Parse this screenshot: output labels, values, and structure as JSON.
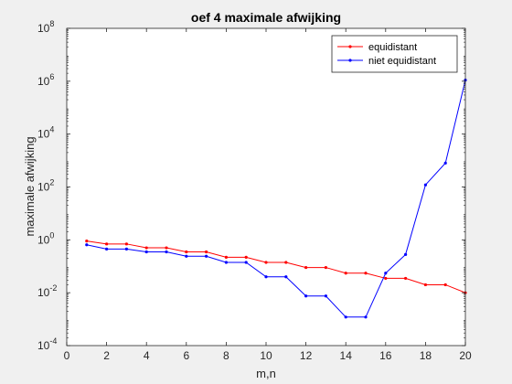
{
  "chart_data": {
    "type": "line",
    "title": "oef 4 maximale afwijking",
    "xlabel": "m,n",
    "ylabel": "maximale afwijking",
    "xlim": [
      0,
      20
    ],
    "ylim_log10": [
      -4,
      8
    ],
    "yscale": "log",
    "x_ticks": [
      "0",
      "2",
      "4",
      "6",
      "8",
      "10",
      "12",
      "14",
      "16",
      "18",
      "20"
    ],
    "y_ticks": [
      {
        "base": "10",
        "exp": "-4"
      },
      {
        "base": "10",
        "exp": "-2"
      },
      {
        "base": "10",
        "exp": "0"
      },
      {
        "base": "10",
        "exp": "2"
      },
      {
        "base": "10",
        "exp": "4"
      },
      {
        "base": "10",
        "exp": "6"
      },
      {
        "base": "10",
        "exp": "8"
      }
    ],
    "legend_position": "top-right",
    "grid": false,
    "x": [
      1,
      2,
      3,
      4,
      5,
      6,
      7,
      8,
      9,
      10,
      11,
      12,
      13,
      14,
      15,
      16,
      17,
      18,
      19,
      20
    ],
    "series": [
      {
        "name": "equidistant",
        "color": "#ff0000",
        "values": [
          0.9,
          0.7,
          0.7,
          0.5,
          0.5,
          0.35,
          0.35,
          0.22,
          0.22,
          0.14,
          0.14,
          0.09,
          0.09,
          0.055,
          0.055,
          0.035,
          0.035,
          0.02,
          0.02,
          0.01
        ]
      },
      {
        "name": "niet equidistant",
        "color": "#0000ff",
        "values": [
          0.65,
          0.45,
          0.45,
          0.35,
          0.35,
          0.24,
          0.24,
          0.14,
          0.14,
          0.04,
          0.04,
          0.0075,
          0.0075,
          0.0012,
          0.0012,
          0.055,
          0.28,
          120,
          800,
          1100000
        ]
      }
    ]
  }
}
